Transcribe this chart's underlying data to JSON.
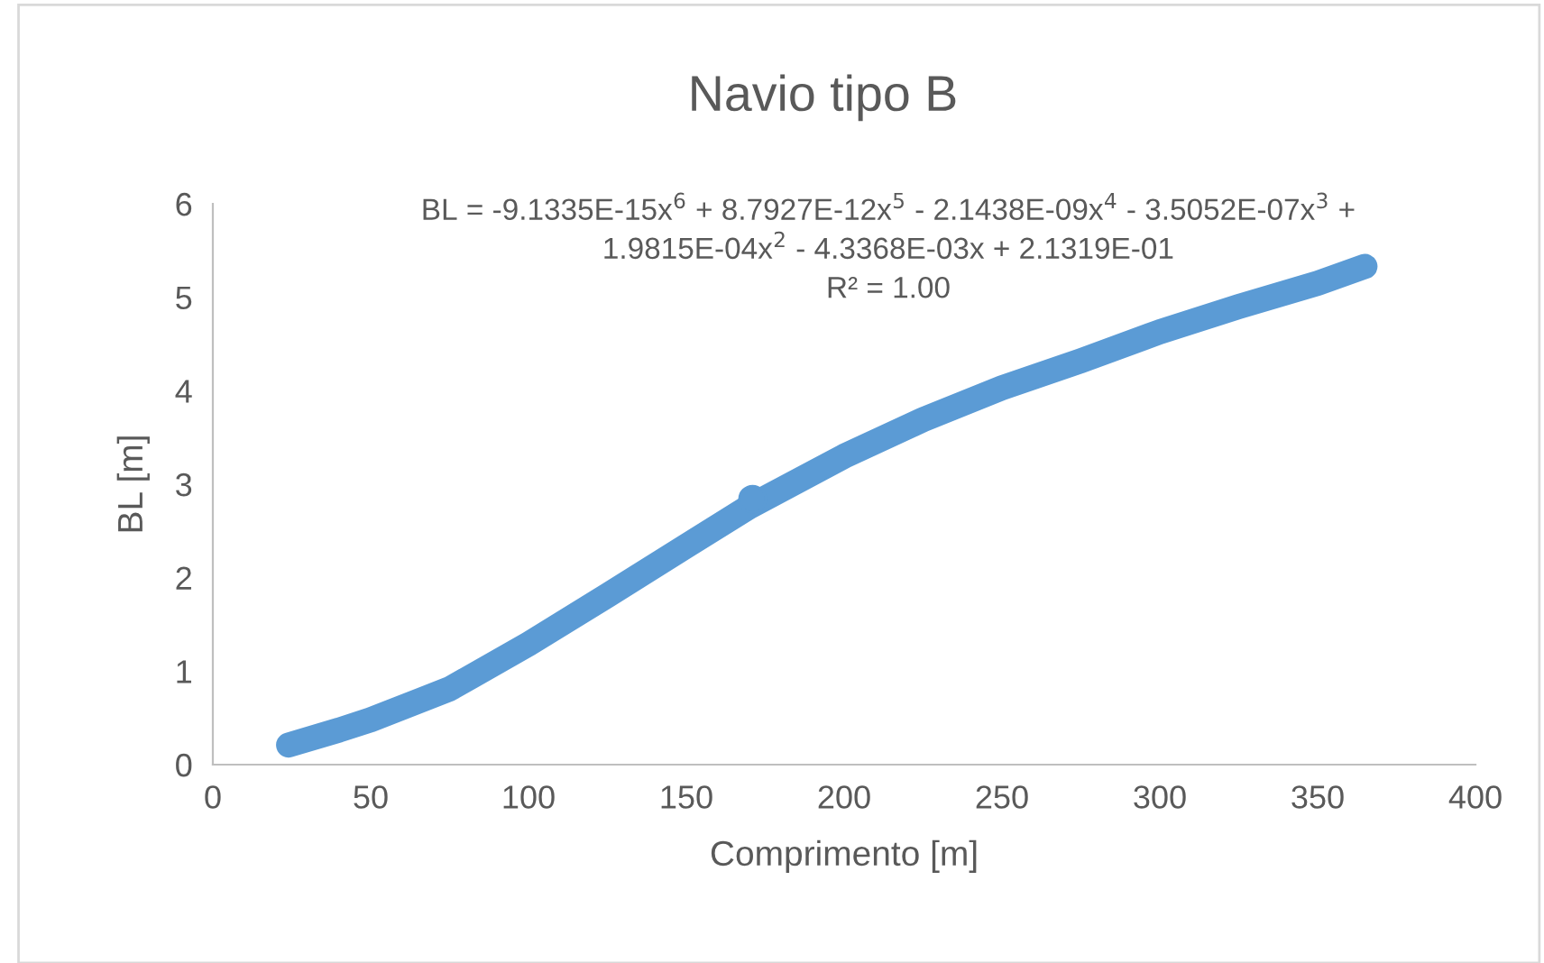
{
  "chart_data": {
    "type": "line",
    "title": "Navio tipo B",
    "xlabel": "Comprimento [m]",
    "ylabel": "BL [m]",
    "annotations": [
      "BL = -9.1335E-15x$^{6}$ + 8.7927E-12x$^{5}$ - 2.1438E-09x$^{4}$ - 3.5052E-07x$^{3}$ +\n1.9815E-04x$^{2}$ - 4.3368E-03x + 2.1319E-01\nR² = 1.00"
    ],
    "x": [
      24,
      40,
      50,
      75,
      100,
      125,
      150,
      170,
      200,
      225,
      250,
      275,
      300,
      325,
      350,
      365
    ],
    "series": [
      {
        "color": "#5b9bd5",
        "values": [
          0.21,
          0.37,
          0.48,
          0.81,
          1.29,
          1.81,
          2.34,
          2.76,
          3.3,
          3.69,
          4.03,
          4.32,
          4.63,
          4.9,
          5.15,
          5.33
        ]
      },
      {
        "type": "scatter",
        "marker": "circle",
        "color": "#5b9bd5",
        "x": [
          171
        ],
        "values": [
          2.84
        ]
      }
    ],
    "xlim": [
      0,
      400
    ],
    "xticks": [
      0,
      50,
      100,
      150,
      200,
      250,
      300,
      350,
      400
    ],
    "ylim": [
      0,
      6
    ],
    "yticks": [
      0,
      1,
      2,
      3,
      4,
      5,
      6
    ],
    "grid": false,
    "legend": false,
    "marker": "none",
    "line_style": "solid"
  }
}
